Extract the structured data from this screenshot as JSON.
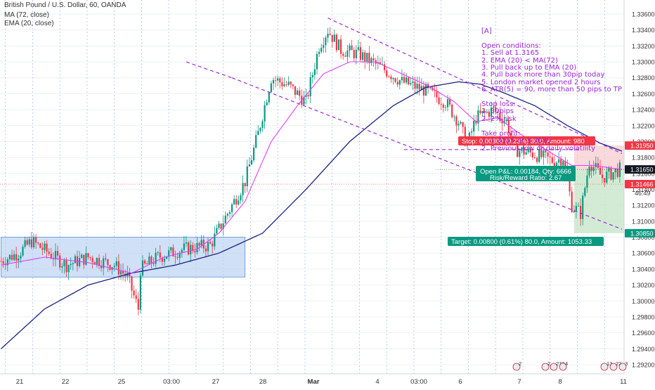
{
  "header": {
    "symbol_line": "British Pound / U.S. Dollar, 60, OANDA",
    "ma_line": "MA (72, close)",
    "ema_line": "EMA (20, close)"
  },
  "chart_data": {
    "type": "candlestick",
    "title": "British Pound / U.S. Dollar, 60, OANDA",
    "ylim": [
      1.292,
      1.337
    ],
    "y_ticks": [
      "1.33600",
      "1.33400",
      "1.33200",
      "1.33000",
      "1.32800",
      "1.32600",
      "1.32400",
      "1.32200",
      "1.32000",
      "1.31800",
      "1.31600",
      "1.31400",
      "1.31200",
      "1.31000",
      "1.30800",
      "1.30600",
      "1.30400",
      "1.30200",
      "1.30000",
      "1.29800",
      "1.29600",
      "1.29400",
      "1.29200"
    ],
    "y_tick_values": [
      1.336,
      1.334,
      1.332,
      1.33,
      1.328,
      1.326,
      1.324,
      1.322,
      1.32,
      1.318,
      1.316,
      1.314,
      1.312,
      1.31,
      1.308,
      1.306,
      1.304,
      1.302,
      1.3,
      1.298,
      1.296,
      1.294,
      1.292
    ],
    "x_tick_labels": [
      "21",
      "22",
      "25",
      "03:00",
      "27",
      "28",
      "Mar",
      "4",
      "03:00",
      "6",
      "7",
      "8",
      "11"
    ],
    "x_tick_index": [
      2,
      32,
      68,
      97,
      124,
      150,
      180,
      216,
      240,
      265,
      297,
      323,
      358
    ],
    "bar_count": 300,
    "price_path": [
      [
        0,
        1.305
      ],
      [
        8,
        1.306
      ],
      [
        14,
        1.3075
      ],
      [
        22,
        1.306
      ],
      [
        30,
        1.3045
      ],
      [
        40,
        1.3055
      ],
      [
        52,
        1.3045
      ],
      [
        58,
        1.303
      ],
      [
        63,
        1.299
      ],
      [
        64,
        1.304
      ],
      [
        72,
        1.3055
      ],
      [
        84,
        1.3065
      ],
      [
        96,
        1.307
      ],
      [
        104,
        1.311
      ],
      [
        112,
        1.315
      ],
      [
        118,
        1.321
      ],
      [
        124,
        1.328
      ],
      [
        132,
        1.327
      ],
      [
        140,
        1.325
      ],
      [
        146,
        1.332
      ],
      [
        150,
        1.334
      ],
      [
        156,
        1.3315
      ],
      [
        164,
        1.331
      ],
      [
        170,
        1.33
      ],
      [
        176,
        1.329
      ],
      [
        184,
        1.3275
      ],
      [
        194,
        1.3265
      ],
      [
        204,
        1.325
      ],
      [
        210,
        1.3225
      ],
      [
        214,
        1.3195
      ],
      [
        218,
        1.323
      ],
      [
        226,
        1.324
      ],
      [
        232,
        1.3225
      ],
      [
        236,
        1.319
      ],
      [
        244,
        1.3185
      ],
      [
        254,
        1.3175
      ],
      [
        258,
        1.318
      ],
      [
        262,
        1.312
      ],
      [
        266,
        1.311
      ],
      [
        270,
        1.3175
      ],
      [
        276,
        1.3155
      ],
      [
        284,
        1.3165
      ]
    ],
    "ma72_path": [
      [
        0,
        1.294
      ],
      [
        20,
        1.299
      ],
      [
        40,
        1.302
      ],
      [
        60,
        1.3035
      ],
      [
        80,
        1.3045
      ],
      [
        100,
        1.306
      ],
      [
        120,
        1.3085
      ],
      [
        140,
        1.314
      ],
      [
        160,
        1.32
      ],
      [
        180,
        1.3245
      ],
      [
        195,
        1.3268
      ],
      [
        210,
        1.3275
      ],
      [
        220,
        1.3272
      ],
      [
        230,
        1.3262
      ],
      [
        245,
        1.3245
      ],
      [
        260,
        1.322
      ],
      [
        275,
        1.3198
      ],
      [
        285,
        1.3188
      ]
    ],
    "ema20_path": [
      [
        0,
        1.3045
      ],
      [
        20,
        1.3055
      ],
      [
        40,
        1.3048
      ],
      [
        60,
        1.3035
      ],
      [
        75,
        1.3055
      ],
      [
        90,
        1.3065
      ],
      [
        100,
        1.3085
      ],
      [
        112,
        1.3125
      ],
      [
        124,
        1.32
      ],
      [
        136,
        1.3245
      ],
      [
        148,
        1.3285
      ],
      [
        160,
        1.33
      ],
      [
        172,
        1.33
      ],
      [
        184,
        1.3285
      ],
      [
        196,
        1.327
      ],
      [
        208,
        1.325
      ],
      [
        218,
        1.3225
      ],
      [
        228,
        1.323
      ],
      [
        238,
        1.321
      ],
      [
        250,
        1.319
      ],
      [
        262,
        1.317
      ],
      [
        272,
        1.317
      ],
      [
        285,
        1.3165
      ]
    ],
    "channel_upper": [
      [
        150,
        1.3355
      ],
      [
        285,
        1.3185
      ]
    ],
    "channel_lower": [
      [
        106,
        1.328
      ],
      [
        285,
        1.309
      ]
    ],
    "channel_upper_ext": [
      [
        106,
        1.3325
      ],
      [
        150,
        1.3355
      ]
    ],
    "support_line": {
      "x": [
        185,
        265
      ],
      "y": 1.319
    },
    "range_box": {
      "x": [
        0,
        112
      ],
      "y": [
        1.303,
        1.308
      ]
    },
    "position": {
      "x": [
        263,
        309
      ],
      "entry": 1.3165,
      "stop": 1.3195,
      "target": 1.3085
    },
    "price_labels": [
      {
        "value": 1.3195,
        "text": "1.31950",
        "color": "#f23645"
      },
      {
        "value": 1.3165,
        "text": "1.31650",
        "color": "#131722"
      },
      {
        "value": 1.31466,
        "text": "1.31466",
        "color": "#f23645"
      },
      {
        "value": 1.3085,
        "text": "1.30850",
        "color": "#089981"
      }
    ],
    "countdown": "46:49",
    "stop_label": "Stop: 0.00300 (0.23%) 30.0, Amount: 980",
    "pnl_label": "Open P&L: 0.00184, Qty: 6666",
    "rr_label": "Risk/Reward Ratio: 2.67",
    "target_label": "Target: 0.00800 (0.61%) 80.0, Amount: 1053.33",
    "event_badges": [
      "2",
      "2",
      "272",
      "4",
      "13",
      "22",
      "3"
    ],
    "colors": {
      "up": "#089981",
      "down": "#f23645",
      "ma": "#1a237e",
      "ema": "#e040fb",
      "channel": "#9b27d6",
      "box": "#bbd3f3",
      "box_border": "#5b8fd6"
    }
  },
  "notes": {
    "text": "[A]\n\nOpen conditions:\n1. Sell at 1.3165\n2. EMA (20) < MA(72)\n3. Pull back up to EMA (20)\n4. Pull back more than 30pip today\n5. London market opened 2 hours\n6. ATR(5) = 90, more than 50 pips to TP\n\nStop loss:\n1. 30pips\n2. 2% risk\n\nTake profit:\n1. 1.3115 or 1.3085\n2. Previous low or daily volatility"
  }
}
